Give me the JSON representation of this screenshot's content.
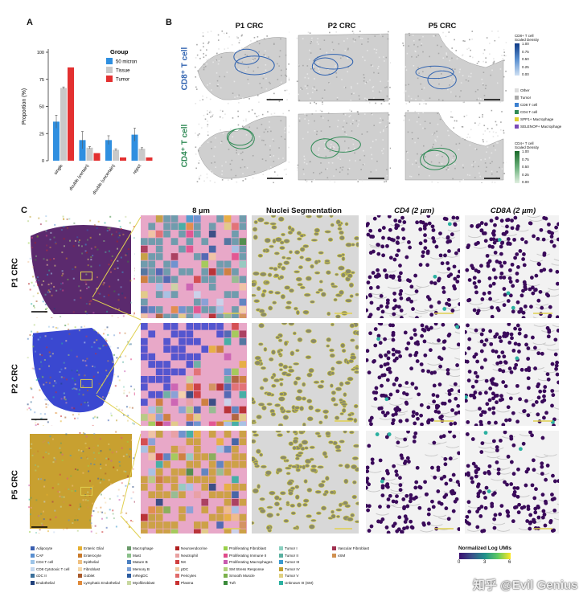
{
  "panel_labels": {
    "a": "A",
    "b": "B",
    "c": "C"
  },
  "colors": {
    "series_50": "#2f8fe0",
    "series_tissue": "#c9c9c9",
    "series_tumor": "#e33030",
    "cd8_outline": "#2f62b0",
    "cd4_outline": "#2f8a55",
    "tissue_gray": "#c3c3c3",
    "purple": "#3a0a5a",
    "yellow": "#d4c23a"
  },
  "chart_data": {
    "type": "bar",
    "categories": [
      "single",
      "double (certain)",
      "double (uncertain)",
      "reject"
    ],
    "series": [
      {
        "name": "50 micron",
        "values": [
          36,
          19,
          19,
          24
        ],
        "errors": [
          6,
          8,
          4,
          6
        ]
      },
      {
        "name": "Tissue",
        "values": [
          67,
          12,
          10,
          11
        ],
        "errors": [
          1,
          1,
          1,
          1
        ]
      },
      {
        "name": "Tumor",
        "values": [
          86,
          7,
          3,
          3
        ],
        "errors": [
          0,
          0,
          0,
          0
        ]
      }
    ],
    "title": "",
    "xlabel": "",
    "ylabel": "Proportion (%)",
    "ylim": [
      0,
      100
    ],
    "yticks": [
      "0",
      "25",
      "50",
      "75",
      "100"
    ],
    "legend_title": "Group",
    "legend_position": "top-right",
    "grid": false
  },
  "panel_b": {
    "col_titles": [
      "P1 CRC",
      "P2 CRC",
      "P5 CRC"
    ],
    "row_titles": [
      "CD8⁺ T cell",
      "CD4⁺ T cell"
    ],
    "cd8_legend": {
      "title": "CD8+ T cell\nScaled Density",
      "ticks": [
        "1.00",
        "0.75",
        "0.50",
        "0.25",
        "0.00"
      ]
    },
    "cd4_legend": {
      "title": "CD4+ T cell\nScaled Density",
      "ticks": [
        "1.00",
        "0.75",
        "0.50",
        "0.25",
        "0.00"
      ]
    },
    "category_legend": [
      {
        "label": "Other",
        "color": "#dcdcdc"
      },
      {
        "label": "Tumor",
        "color": "#a8a8a8"
      },
      {
        "label": "CD8 T cell",
        "color": "#3a7fd0"
      },
      {
        "label": "CD4 T cell",
        "color": "#2f8a55"
      },
      {
        "label": "SPP1+ Macrophage",
        "color": "#e0d030"
      },
      {
        "label": "SELENOP+ Macrophage",
        "color": "#7a4ab8"
      }
    ]
  },
  "panel_c": {
    "col_titles": [
      "",
      "8 µm",
      "Nuclei Segmentation",
      "CD4 (2 µm)",
      "CD8A (2 µm)"
    ],
    "row_titles": [
      "P1 CRC",
      "P2 CRC",
      "P5 CRC"
    ],
    "colorbar": {
      "title": "Normalized Log UMIs",
      "ticks": [
        "0",
        "3",
        "6"
      ]
    },
    "legend": [
      {
        "label": "Adipocyte",
        "color": "#3a5fb0"
      },
      {
        "label": "CAF",
        "color": "#5a8fd0"
      },
      {
        "label": "CD4 T cell",
        "color": "#9ec5e8"
      },
      {
        "label": "CD8 Cytotoxic T cell",
        "color": "#c5d8ee"
      },
      {
        "label": "cDC II",
        "color": "#3a6f9a"
      },
      {
        "label": "Endothelial",
        "color": "#1f3f7a"
      },
      {
        "label": "Enteric Glial",
        "color": "#e6b030"
      },
      {
        "label": "Enterocyte",
        "color": "#c97a2a"
      },
      {
        "label": "Epithelial",
        "color": "#f0c080"
      },
      {
        "label": "Fibroblast",
        "color": "#f5d8a8"
      },
      {
        "label": "Goblet",
        "color": "#a85a2a"
      },
      {
        "label": "Lymphatic Endothelial",
        "color": "#e08a3a"
      },
      {
        "label": "Macrophage",
        "color": "#6a9a6a"
      },
      {
        "label": "Mast",
        "color": "#8ac08a"
      },
      {
        "label": "Mature B",
        "color": "#4a7fc0"
      },
      {
        "label": "Memory B",
        "color": "#7aa0d8"
      },
      {
        "label": "mRegDC",
        "color": "#2a5aa0"
      },
      {
        "label": "Myofibroblast",
        "color": "#c8d8a0"
      },
      {
        "label": "Neuroendocrine",
        "color": "#b02020"
      },
      {
        "label": "Neutrophil",
        "color": "#e8a0a0"
      },
      {
        "label": "NK",
        "color": "#d04040"
      },
      {
        "label": "pDC",
        "color": "#f0c8a0"
      },
      {
        "label": "Pericytes",
        "color": "#e06a6a"
      },
      {
        "label": "Plasma",
        "color": "#c83030"
      },
      {
        "label": "Proliferating Fibroblast",
        "color": "#9ad04a"
      },
      {
        "label": "Proliferating Immune II",
        "color": "#e04a8a"
      },
      {
        "label": "Proliferating Macrophages",
        "color": "#c85ab0"
      },
      {
        "label": "SM Stress Response",
        "color": "#b0d07a"
      },
      {
        "label": "Smooth Muscle",
        "color": "#7ab04a"
      },
      {
        "label": "Tuft",
        "color": "#3a8a3a"
      },
      {
        "label": "Tumor I",
        "color": "#8ad0c0"
      },
      {
        "label": "Tumor II",
        "color": "#5ab0a0"
      },
      {
        "label": "Tumor III",
        "color": "#3a9ad0"
      },
      {
        "label": "Tumor IV",
        "color": "#c0a030"
      },
      {
        "label": "Tumor V",
        "color": "#e0d080"
      },
      {
        "label": "Unknown III (SM)",
        "color": "#2ab0a0"
      },
      {
        "label": "Vascular Fibroblast",
        "color": "#a03050"
      },
      {
        "label": "vSM",
        "color": "#d09050"
      }
    ]
  },
  "watermark": "知乎 @Evil Genius"
}
